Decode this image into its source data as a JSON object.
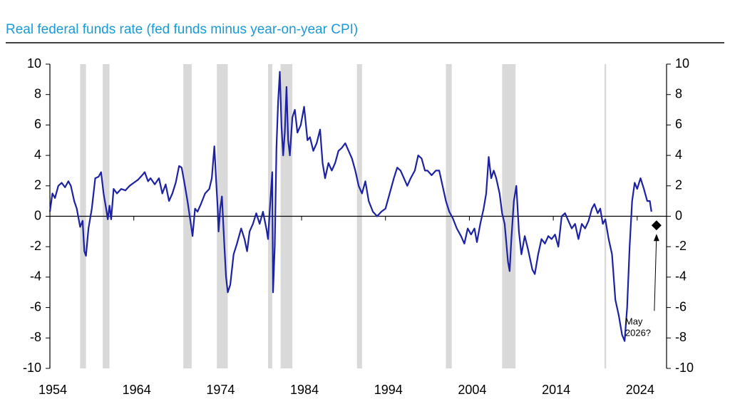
{
  "chart_data": {
    "type": "line",
    "title": "Real federal funds rate (fed funds minus year-on-year CPI)",
    "xlim": [
      1954,
      2027.5
    ],
    "xticks": [
      1954,
      1964,
      1974,
      1984,
      1994,
      2004,
      2014,
      2024
    ],
    "ylim": [
      -10,
      10
    ],
    "yticks": [
      -10,
      -8,
      -6,
      -4,
      -2,
      0,
      2,
      4,
      6,
      8,
      10
    ],
    "y2lim": [
      -10,
      10
    ],
    "y2ticks": [
      -10,
      -8,
      -6,
      -4,
      -2,
      0,
      2,
      4,
      6,
      8,
      10
    ],
    "recession_color": "#d9d9d9",
    "recessions": [
      [
        1957.6,
        1958.3
      ],
      [
        1960.3,
        1961.1
      ],
      [
        1969.9,
        1970.9
      ],
      [
        1973.9,
        1975.2
      ],
      [
        1980.0,
        1980.5
      ],
      [
        1981.5,
        1982.9
      ],
      [
        1990.6,
        1991.2
      ],
      [
        2001.2,
        2001.9
      ],
      [
        2007.9,
        2009.5
      ],
      [
        2020.1,
        2020.3
      ]
    ],
    "x": [
      1954.0,
      1954.3,
      1954.6,
      1955.0,
      1955.4,
      1955.8,
      1956.2,
      1956.5,
      1956.9,
      1957.2,
      1957.6,
      1957.9,
      1958.1,
      1958.3,
      1958.6,
      1959.0,
      1959.4,
      1959.8,
      1960.1,
      1960.4,
      1960.7,
      1960.9,
      1961.1,
      1961.3,
      1961.6,
      1962.0,
      1962.5,
      1963.0,
      1963.5,
      1964.0,
      1964.5,
      1965.0,
      1965.3,
      1965.7,
      1966.0,
      1966.5,
      1967.0,
      1967.4,
      1967.8,
      1968.2,
      1968.6,
      1969.0,
      1969.4,
      1969.7,
      1970.0,
      1970.4,
      1970.8,
      1971.0,
      1971.3,
      1971.6,
      1972.0,
      1972.5,
      1973.0,
      1973.3,
      1973.6,
      1973.8,
      1974.0,
      1974.1,
      1974.3,
      1974.5,
      1974.8,
      1975.0,
      1975.2,
      1975.5,
      1975.9,
      1976.3,
      1976.8,
      1977.2,
      1977.5,
      1977.8,
      1978.2,
      1978.6,
      1979.0,
      1979.4,
      1979.8,
      1980.0,
      1980.2,
      1980.5,
      1980.6,
      1980.8,
      1981.0,
      1981.2,
      1981.4,
      1981.6,
      1981.8,
      1982.0,
      1982.2,
      1982.4,
      1982.6,
      1982.9,
      1983.2,
      1983.5,
      1983.9,
      1984.3,
      1984.7,
      1985.0,
      1985.4,
      1985.8,
      1986.2,
      1986.5,
      1986.8,
      1987.2,
      1987.6,
      1988.0,
      1988.4,
      1988.8,
      1989.2,
      1989.6,
      1990.0,
      1990.4,
      1990.8,
      1991.2,
      1991.6,
      1992.0,
      1992.5,
      1993.0,
      1993.5,
      1994.0,
      1994.5,
      1995.0,
      1995.4,
      1995.8,
      1996.2,
      1996.6,
      1997.0,
      1997.5,
      1997.9,
      1998.3,
      1998.7,
      1999.0,
      1999.5,
      2000.0,
      2000.4,
      2000.8,
      2001.2,
      2001.6,
      2002.0,
      2002.5,
      2003.0,
      2003.4,
      2003.8,
      2004.2,
      2004.6,
      2004.9,
      2005.3,
      2005.7,
      2006.0,
      2006.3,
      2006.6,
      2006.9,
      2007.2,
      2007.6,
      2007.9,
      2008.2,
      2008.6,
      2008.8,
      2009.0,
      2009.3,
      2009.6,
      2009.9,
      2010.2,
      2010.6,
      2011.0,
      2011.5,
      2011.8,
      2012.2,
      2012.6,
      2013.0,
      2013.4,
      2013.8,
      2014.2,
      2014.6,
      2015.0,
      2015.4,
      2015.8,
      2016.2,
      2016.6,
      2017.0,
      2017.4,
      2017.8,
      2018.2,
      2018.6,
      2018.9,
      2019.3,
      2019.6,
      2019.9,
      2020.2,
      2020.6,
      2021.0,
      2021.4,
      2021.8,
      2022.2,
      2022.5,
      2022.8,
      2023.1,
      2023.4,
      2023.7,
      2024.0,
      2024.4,
      2024.8,
      2025.2,
      2025.5,
      2025.7
    ],
    "series": [
      {
        "color": "#1c22a3",
        "values": [
          0.3,
          1.5,
          1.2,
          2.0,
          2.2,
          1.9,
          2.3,
          2.0,
          1.0,
          0.5,
          -0.7,
          -0.3,
          -2.3,
          -2.6,
          -0.8,
          0.5,
          2.5,
          2.6,
          2.9,
          1.5,
          0.5,
          -0.2,
          0.7,
          -0.2,
          1.8,
          1.5,
          1.8,
          1.7,
          2.0,
          2.2,
          2.4,
          2.7,
          2.9,
          2.3,
          2.5,
          2.1,
          2.5,
          1.5,
          2.1,
          1.0,
          1.5,
          2.2,
          3.3,
          3.2,
          2.3,
          1.0,
          -0.5,
          -1.3,
          0.5,
          0.3,
          0.8,
          1.5,
          1.8,
          2.5,
          4.6,
          2.5,
          0.5,
          -1.0,
          0.5,
          1.3,
          -2.0,
          -4.0,
          -5.0,
          -4.5,
          -2.5,
          -1.8,
          -0.8,
          -1.5,
          -2.3,
          -1.0,
          -0.5,
          0.2,
          -0.5,
          0.3,
          -0.8,
          -1.5,
          0.3,
          2.9,
          -5.0,
          -2.0,
          4.5,
          7.5,
          9.5,
          6.0,
          4.0,
          5.5,
          8.5,
          5.0,
          4.0,
          6.5,
          7.0,
          5.5,
          6.0,
          7.2,
          5.0,
          5.2,
          4.3,
          4.8,
          5.7,
          3.5,
          2.5,
          3.5,
          3.0,
          3.5,
          4.3,
          4.5,
          4.8,
          4.3,
          3.8,
          3.0,
          2.0,
          1.5,
          2.3,
          1.0,
          0.3,
          0.0,
          0.3,
          0.5,
          1.5,
          2.5,
          3.2,
          3.0,
          2.5,
          2.0,
          2.5,
          3.0,
          4.0,
          3.8,
          3.0,
          3.0,
          2.7,
          3.0,
          3.0,
          2.0,
          1.0,
          0.3,
          -0.1,
          -0.8,
          -1.3,
          -1.8,
          -0.8,
          -1.2,
          -0.8,
          -1.7,
          -0.5,
          0.5,
          1.5,
          3.9,
          2.5,
          3.0,
          2.5,
          1.5,
          0.2,
          -0.5,
          -3.0,
          -3.6,
          -1.5,
          1.0,
          2.0,
          -1.0,
          -2.5,
          -1.3,
          -2.2,
          -3.5,
          -3.8,
          -2.5,
          -1.5,
          -1.8,
          -1.3,
          -1.5,
          -1.2,
          -2.0,
          0.0,
          0.2,
          -0.3,
          -0.8,
          -0.5,
          -1.5,
          -0.5,
          -0.8,
          -0.3,
          0.5,
          0.8,
          0.2,
          0.5,
          -0.5,
          -0.2,
          -1.5,
          -2.5,
          -5.5,
          -6.5,
          -7.8,
          -8.2,
          -6.0,
          -2.0,
          1.0,
          2.2,
          1.8,
          2.5,
          1.8,
          1.0,
          1.0,
          0.3
        ]
      }
    ],
    "projection": {
      "x": 2026.3,
      "y": -0.6,
      "label_lines": [
        "May",
        "2026?"
      ]
    }
  }
}
